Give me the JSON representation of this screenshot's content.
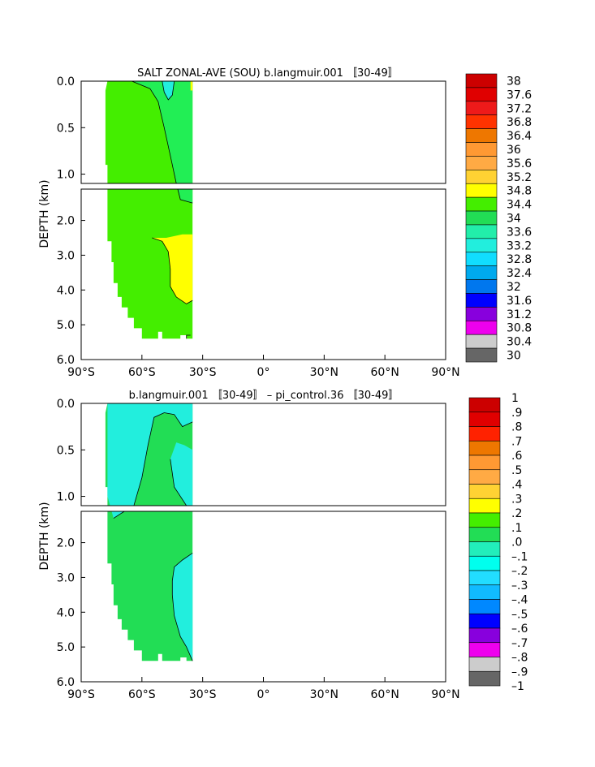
{
  "chart_data": [
    {
      "type": "heatmap",
      "title": "SALT ZONAL-AVE (SOU) b.langmuir.001 〚30-49〛",
      "ylabel": "DEPTH (km)",
      "x_ticks": [
        "90°S",
        "60°S",
        "30°S",
        "0°",
        "30°N",
        "60°N",
        "90°N"
      ],
      "upper_y_ticks": [
        "0.0",
        "0.5",
        "1.0"
      ],
      "lower_y_ticks": [
        "2.0",
        "3.0",
        "4.0",
        "5.0",
        "6.0"
      ],
      "xlim": [
        -90,
        90
      ],
      "ylim_upper": [
        0,
        1.1
      ],
      "ylim_lower": [
        1.1,
        6
      ],
      "legend": {
        "labels": [
          "38",
          "37.6",
          "37.2",
          "36.8",
          "36.4",
          "36",
          "35.6",
          "35.2",
          "34.8",
          "34.4",
          "34",
          "33.6",
          "33.2",
          "32.8",
          "32.4",
          "32",
          "31.6",
          "31.2",
          "30.8",
          "30.4",
          "30"
        ],
        "colors": [
          "#cc0000",
          "#e00000",
          "#ee1a1a",
          "#ff3300",
          "#ee7700",
          "#ff9933",
          "#ffaa44",
          "#ffd233",
          "#ffff00",
          "#44ee00",
          "#22dd55",
          "#22eeaa",
          "#22eedd",
          "#11ddff",
          "#00aaee",
          "#0077ee",
          "#0000ff",
          "#8800dd",
          "#ee00ee",
          "#cccccc",
          "#666666"
        ]
      },
      "regions": {
        "domain": {
          "lat": [
            -78,
            -35
          ],
          "depth": [
            0,
            5.4
          ]
        },
        "dominant": {
          "value_range": [
            34.4,
            34.8
          ],
          "color": "#44ee00"
        },
        "surface_low": {
          "value_range": [
            34.0,
            34.4
          ],
          "location": "lat -55 to -40, depth 0 to 0.3",
          "color": "#22dd55"
        },
        "surface_lowest": {
          "value_range": [
            33.6,
            34.0
          ],
          "location": "lat -50 to -45, depth 0 to 0.2",
          "color": "#22eedd"
        },
        "deep_high": {
          "value_range": [
            34.8,
            35.2
          ],
          "location": "lat -55 to -35, depth 2.4 to 4.4",
          "color": "#ffff00"
        }
      }
    },
    {
      "type": "heatmap",
      "title": "b.langmuir.001 〚30-49〛 – pi_control.36 〚30-49〛",
      "ylabel": "DEPTH (km)",
      "x_ticks": [
        "90°S",
        "60°S",
        "30°S",
        "0°",
        "30°N",
        "60°N",
        "90°N"
      ],
      "upper_y_ticks": [
        "0.0",
        "0.5",
        "1.0"
      ],
      "lower_y_ticks": [
        "2.0",
        "3.0",
        "4.0",
        "5.0",
        "6.0"
      ],
      "xlim": [
        -90,
        90
      ],
      "ylim_upper": [
        0,
        1.1
      ],
      "ylim_lower": [
        1.1,
        6
      ],
      "legend": {
        "labels": [
          "1",
          ".9",
          ".8",
          ".7",
          ".6",
          ".5",
          ".4",
          ".3",
          ".2",
          ".1",
          ".0",
          "–.1",
          "–.2",
          "–.3",
          "–.4",
          "–.5",
          "–.6",
          "–.7",
          "–.8",
          "–.9",
          "–1"
        ],
        "colors": [
          "#cc0000",
          "#e00000",
          "#ff2200",
          "#ee7700",
          "#ff9933",
          "#ffaa44",
          "#ffd233",
          "#ffff00",
          "#44ee00",
          "#22dd55",
          "#22eebb",
          "#00ffee",
          "#22ddff",
          "#11bbff",
          "#0088ff",
          "#0000ff",
          "#8800dd",
          "#ee00ee",
          "#cccccc",
          "#666666"
        ]
      },
      "regions": {
        "domain": {
          "lat": [
            -78,
            -35
          ],
          "depth": [
            0,
            5.4
          ]
        },
        "dominant": {
          "value_range": [
            0.0,
            0.1
          ],
          "color": "#22dd55"
        },
        "surface_neg": {
          "value_range": [
            -0.1,
            0.0
          ],
          "location": "lat -78 to -55 upper ocean and lat -50 to -35 below 2.3 km",
          "color": "#22eedd"
        }
      }
    }
  ]
}
